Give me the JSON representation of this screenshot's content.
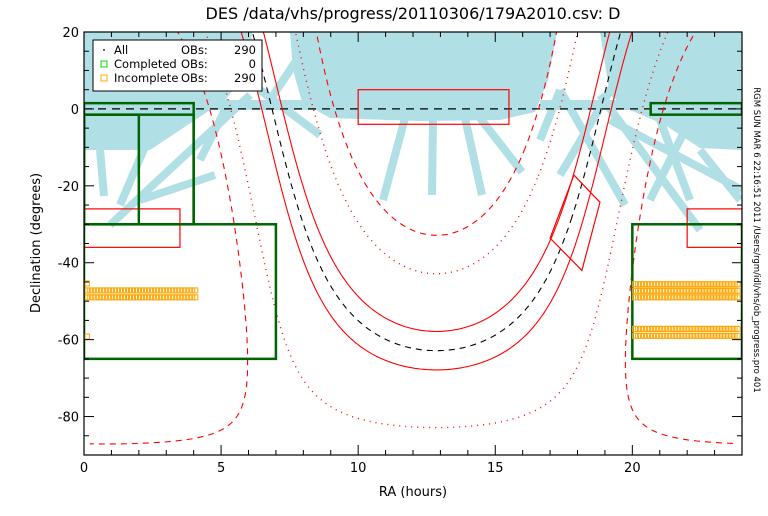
{
  "chart_data": {
    "type": "scatter",
    "title": "DES /data/vhs/progress/20110306/179A2010.csv: D",
    "xlabel": "RA (hours)",
    "ylabel": "Declination (degrees)",
    "xlim": [
      0,
      24
    ],
    "ylim": [
      -90,
      20
    ],
    "x_ticks": [
      "0",
      "5",
      "10",
      "15",
      "20"
    ],
    "y_ticks": [
      "20",
      "0",
      "-20",
      "-40",
      "-60",
      "-80"
    ],
    "side_note": "RGM SUN MAR  6 22:16:51 2011 /Users/rgm/idl/vhs/ob_progress.pro 401",
    "legend": {
      "placement": "top-left",
      "entries": [
        {
          "symbol": "dot",
          "label": "All",
          "obs_label": "OBs:",
          "count": "290",
          "color": "#000000"
        },
        {
          "symbol": "square",
          "label": "Completed",
          "obs_label": "OBs:",
          "count": "0",
          "color": "#00dd00"
        },
        {
          "symbol": "square",
          "label": "Incomplete",
          "obs_label": "OBs:",
          "count": "290",
          "color": "#ffa500"
        }
      ]
    },
    "galactic_latitude_lines": [
      {
        "b": 0,
        "style": "dashed",
        "color": "#000000"
      },
      {
        "b": 5,
        "style": "solid",
        "color": "#ff0000"
      },
      {
        "b": -5,
        "style": "solid",
        "color": "#ff0000"
      },
      {
        "b": 20,
        "style": "dotted",
        "color": "#ff0000"
      },
      {
        "b": -20,
        "style": "dotted",
        "color": "#ff0000"
      },
      {
        "b": 30,
        "style": "dashed",
        "color": "#ff0000"
      },
      {
        "b": -30,
        "style": "dashed",
        "color": "#ff0000"
      }
    ],
    "equator_line": {
      "dec": 0,
      "style": "dashed",
      "color": "#000000"
    },
    "green_regions": [
      {
        "ra": [
          0,
          4
        ],
        "dec": [
          -30,
          1.5
        ]
      },
      {
        "ra": [
          0,
          4
        ],
        "dec": [
          -30,
          -1.5
        ]
      },
      {
        "ra": [
          0,
          2
        ],
        "dec": [
          -30,
          -1.5
        ]
      },
      {
        "ra": [
          20.67,
          24
        ],
        "dec": [
          -1.5,
          1.5
        ]
      },
      {
        "ra": [
          0,
          7
        ],
        "dec": [
          -65,
          -30
        ]
      },
      {
        "ra": [
          20,
          24
        ],
        "dec": [
          -65,
          -30
        ]
      }
    ],
    "red_regions": [
      {
        "ra": [
          10,
          15.5
        ],
        "dec": [
          -4,
          5
        ]
      },
      {
        "ra": [
          0,
          3.5
        ],
        "dec": [
          -36,
          -26
        ]
      },
      {
        "ra": [
          22,
          24
        ],
        "dec": [
          -36,
          -26
        ]
      }
    ],
    "red_polygon": [
      [
        17.87,
        -17.2
      ],
      [
        18.82,
        -24.3
      ],
      [
        18.16,
        -42.0
      ],
      [
        17.0,
        -33.6
      ]
    ],
    "incomplete_ob_rows": [
      {
        "dec": -47.2,
        "ra": [
          0.1,
          4.1
        ]
      },
      {
        "dec": -49.0,
        "ra": [
          0.1,
          4.1
        ]
      },
      {
        "dec": -45.6,
        "ra": [
          20.1,
          23.9
        ]
      },
      {
        "dec": -47.3,
        "ra": [
          20.1,
          23.9
        ]
      },
      {
        "dec": -49.0,
        "ra": [
          20.1,
          23.9
        ]
      },
      {
        "dec": -57.2,
        "ra": [
          20.1,
          23.9
        ]
      },
      {
        "dec": -59.0,
        "ra": [
          20.1,
          23.9
        ]
      }
    ],
    "incomplete_ob_singles": [
      [
        0.05,
        -45.4
      ],
      [
        0.05,
        -59.2
      ]
    ],
    "colors": {
      "coverage": "#b0dfe5",
      "green": "#006400",
      "red": "#ff0000",
      "orange": "#ffa500"
    }
  }
}
